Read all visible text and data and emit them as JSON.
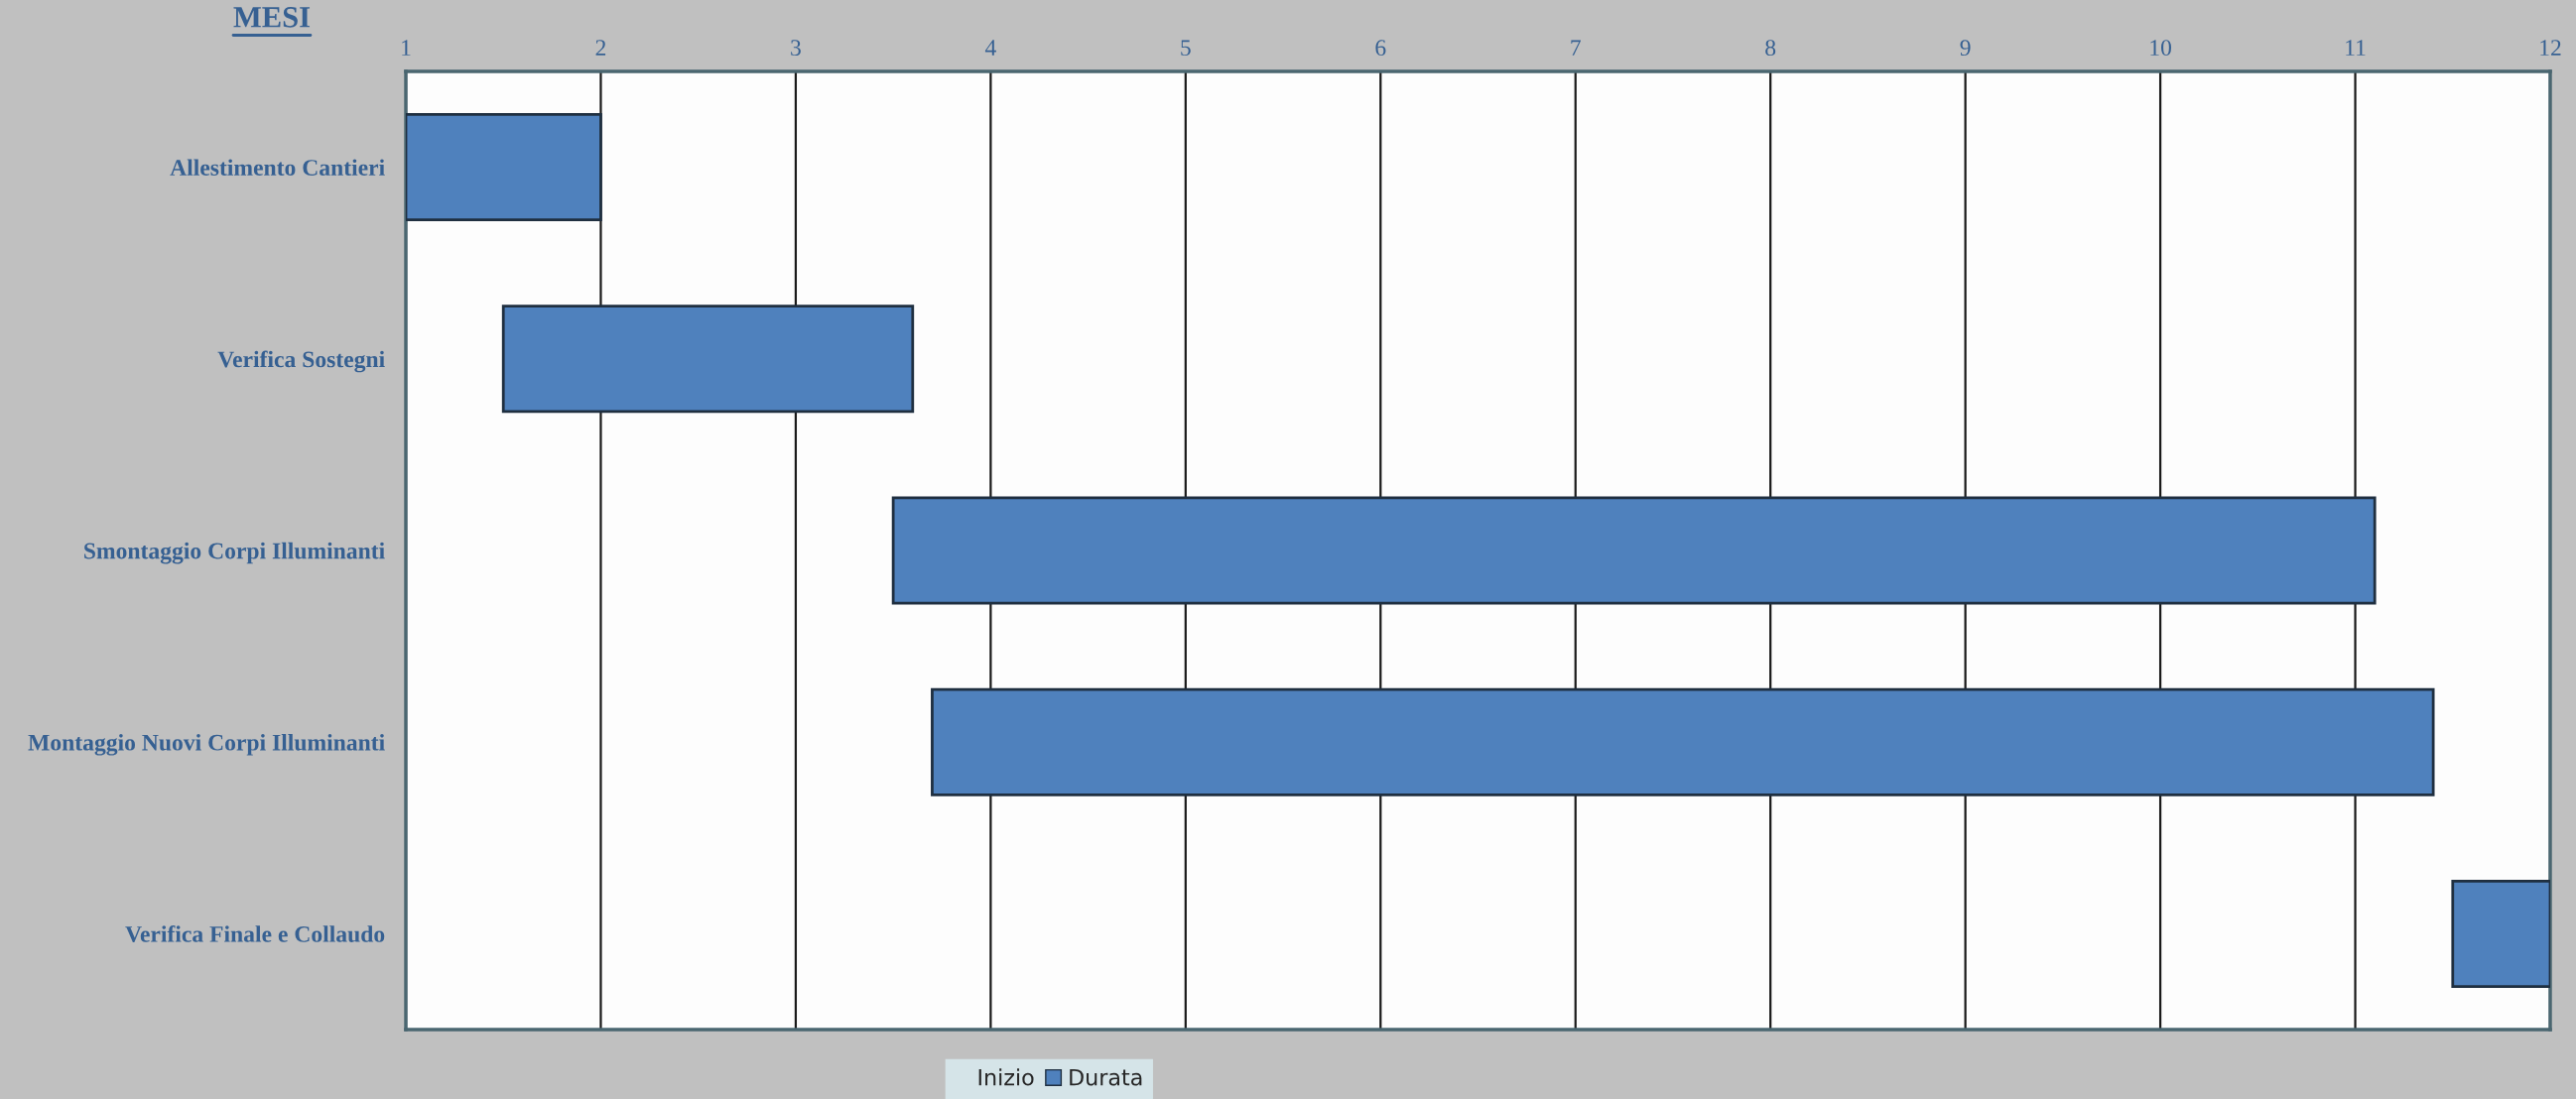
{
  "chart_data": {
    "type": "bar",
    "orientation": "horizontal",
    "title": "MESI",
    "categories": [
      "Allestimento Cantieri",
      "Verifica Sostegni",
      "Smontaggio Corpi Illuminanti",
      "Montaggio Nuovi Corpi Illuminanti",
      "Verifica Finale e Collaudo"
    ],
    "series": [
      {
        "name": "Inizio",
        "color": null,
        "values": [
          null,
          null,
          null,
          null,
          null
        ]
      },
      {
        "name": "Durata",
        "color": "#4f81bd",
        "values": [
          1,
          2.1,
          7.6,
          7.7,
          0.5
        ],
        "base": [
          1,
          1.5,
          3.5,
          3.7,
          11.5
        ]
      }
    ],
    "xlim": [
      1,
      12
    ],
    "xticks": [
      1,
      2,
      3,
      4,
      5,
      6,
      7,
      8,
      9,
      10,
      11,
      12
    ],
    "grid": "x",
    "legend": "bottom"
  }
}
